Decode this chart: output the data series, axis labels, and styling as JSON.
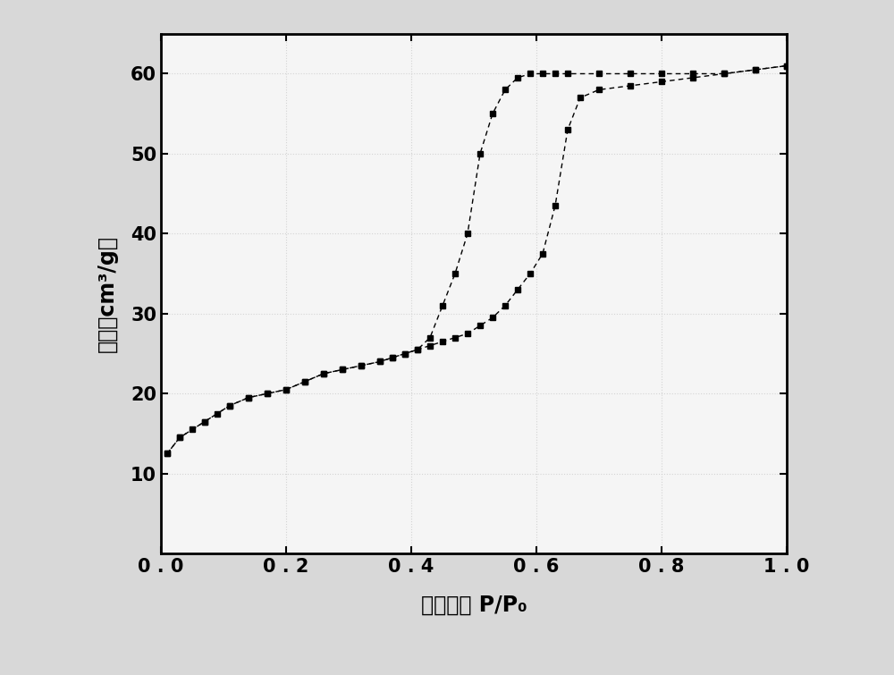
{
  "adsorption_x": [
    0.01,
    0.03,
    0.05,
    0.07,
    0.09,
    0.11,
    0.14,
    0.17,
    0.2,
    0.23,
    0.26,
    0.29,
    0.32,
    0.35,
    0.37,
    0.39,
    0.41,
    0.43,
    0.45,
    0.47,
    0.49,
    0.51,
    0.53,
    0.55,
    0.57,
    0.59,
    0.61,
    0.63,
    0.65,
    0.7,
    0.75,
    0.8,
    0.85,
    0.9,
    0.95,
    1.0
  ],
  "adsorption_y": [
    12.5,
    14.5,
    15.5,
    16.5,
    17.5,
    18.5,
    19.5,
    20.0,
    20.5,
    21.5,
    22.5,
    23.0,
    23.5,
    24.0,
    24.5,
    25.0,
    25.5,
    27.0,
    31.0,
    35.0,
    40.0,
    50.0,
    55.0,
    58.0,
    59.5,
    60.0,
    60.0,
    60.0,
    60.0,
    60.0,
    60.0,
    60.0,
    60.0,
    60.0,
    60.5,
    61.0
  ],
  "desorption_x": [
    1.0,
    0.95,
    0.9,
    0.85,
    0.8,
    0.75,
    0.7,
    0.67,
    0.65,
    0.63,
    0.61,
    0.59,
    0.57,
    0.55,
    0.53,
    0.51,
    0.49,
    0.47,
    0.45,
    0.43,
    0.41,
    0.39,
    0.37,
    0.35,
    0.32,
    0.29,
    0.26,
    0.23,
    0.2,
    0.17,
    0.14,
    0.11,
    0.07,
    0.03,
    0.01
  ],
  "desorption_y": [
    61.0,
    60.5,
    60.0,
    59.5,
    59.0,
    58.5,
    58.0,
    57.0,
    53.0,
    43.5,
    37.5,
    35.0,
    33.0,
    31.0,
    29.5,
    28.5,
    27.5,
    27.0,
    26.5,
    26.0,
    25.5,
    25.0,
    24.5,
    24.0,
    23.5,
    23.0,
    22.5,
    21.5,
    20.5,
    20.0,
    19.5,
    18.5,
    16.5,
    14.5,
    12.5
  ],
  "xlabel": "相对压强 P/P₀",
  "ylabel": "体积（cm³/g）",
  "xlim": [
    0.0,
    1.0
  ],
  "ylim": [
    0,
    65
  ],
  "xticks": [
    0.0,
    0.2,
    0.4,
    0.6,
    0.8,
    1.0
  ],
  "xtick_labels": [
    "0 . 0",
    "0 . 2",
    "0 . 4",
    "0 . 6",
    "0 . 8",
    "1 . 0"
  ],
  "yticks": [
    10,
    20,
    30,
    40,
    50,
    60
  ],
  "ytick_labels": [
    "10",
    "20",
    "30",
    "40",
    "50",
    "60"
  ],
  "marker": "s",
  "markersize": 5,
  "linewidth": 1.0,
  "color": "#000000",
  "fig_facecolor": "#d8d8d8",
  "ax_facecolor": "#f5f5f5",
  "label_fontsize": 17,
  "tick_fontsize": 15,
  "grid_color": "#cccccc",
  "grid_linestyle": ":",
  "grid_linewidth": 0.8
}
